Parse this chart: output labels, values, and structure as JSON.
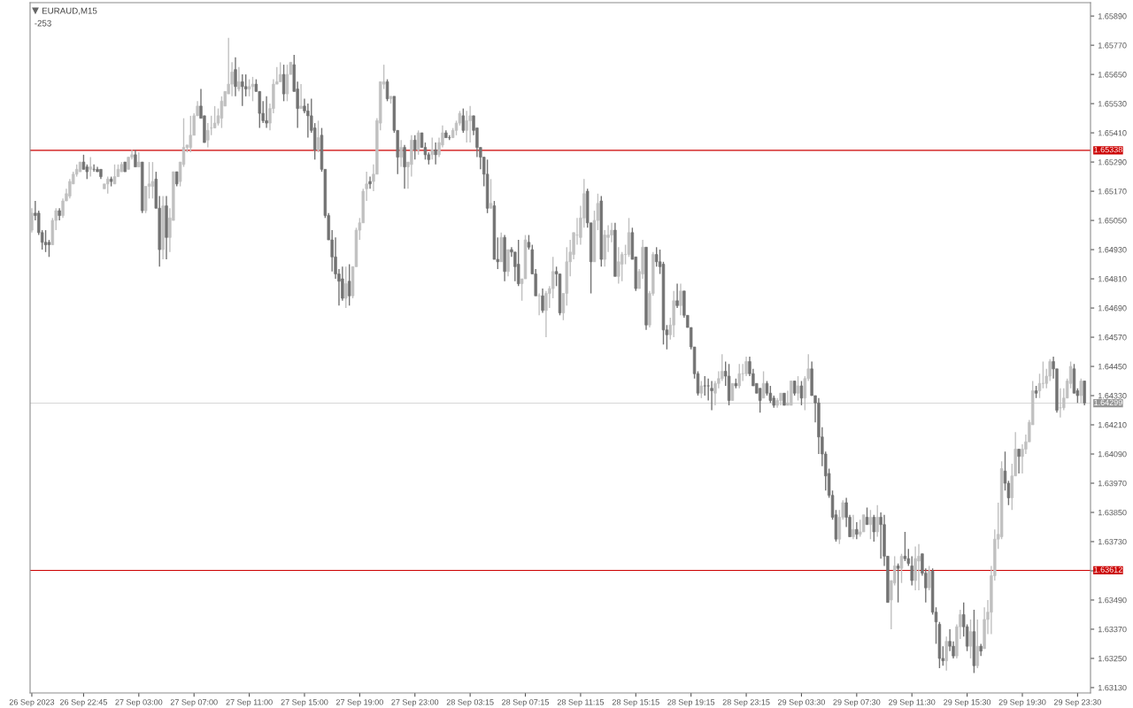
{
  "chart_data": {
    "type": "candlestick",
    "title": "EURAUD,M15",
    "annotations": [
      "-253"
    ],
    "colors": [
      "#c0c0c0",
      "#737373",
      "#737373",
      "#737373",
      "#737373",
      "#737373",
      "#c0c0c0",
      "#c0c0c0",
      "#737373",
      "#c0c0c0",
      "#c0c0c0",
      "#c0c0c0",
      "#c0c0c0",
      "#c0c0c0",
      "#c0c0c0",
      "#737373",
      "#737373",
      "#c0c0c0",
      "#737373",
      "#737373",
      "#737373",
      "#c0c0c0",
      "#c0c0c0",
      "#737373",
      "#c0c0c0",
      "#c0c0c0",
      "#c0c0c0",
      "#737373",
      "#c0c0c0",
      "#c0c0c0",
      "#737373",
      "#c0c0c0",
      "#737373",
      "#c0c0c0",
      "#c0c0c0",
      "#c0c0c0",
      "#737373",
      "#737373",
      "#c0c0c0",
      "#737373",
      "#c0c0c0",
      "#c0c0c0",
      "#737373",
      "#c0c0c0",
      "#c0c0c0",
      "#c0c0c0",
      "#c0c0c0",
      "#c0c0c0",
      "#c0c0c0",
      "#737373",
      "#737373",
      "#c0c0c0",
      "#c0c0c0",
      "#c0c0c0",
      "#c0c0c0",
      "#c0c0c0",
      "#c0c0c0",
      "#c0c0c0",
      "#c0c0c0",
      "#737373",
      "#c0c0c0",
      "#737373",
      "#737373",
      "#c0c0c0",
      "#c0c0c0",
      "#737373",
      "#737373",
      "#737373",
      "#737373",
      "#c0c0c0",
      "#c0c0c0",
      "#c0c0c0",
      "#c0c0c0",
      "#737373",
      "#c0c0c0",
      "#c0c0c0",
      "#737373",
      "#737373",
      "#c0c0c0",
      "#737373",
      "#737373",
      "#737373",
      "#737373",
      "#c0c0c0",
      "#737373",
      "#737373",
      "#737373",
      "#737373",
      "#737373",
      "#737373",
      "#737373",
      "#c0c0c0",
      "#737373",
      "#c0c0c0",
      "#c0c0c0",
      "#c0c0c0",
      "#c0c0c0",
      "#c0c0c0",
      "#737373",
      "#c0c0c0",
      "#c0c0c0",
      "#c0c0c0",
      "#c0c0c0",
      "#737373",
      "#c0c0c0",
      "#737373",
      "#737373",
      "#c0c0c0",
      "#737373",
      "#c0c0c0",
      "#c0c0c0",
      "#737373",
      "#c0c0c0",
      "#737373",
      "#737373",
      "#737373",
      "#c0c0c0",
      "#737373",
      "#c0c0c0",
      "#c0c0c0",
      "#737373",
      "#737373",
      "#c0c0c0",
      "#c0c0c0",
      "#c0c0c0",
      "#737373",
      "#c0c0c0",
      "#c0c0c0",
      "#737373",
      "#737373",
      "#737373",
      "#737373",
      "#737373",
      "#c0c0c0",
      "#737373",
      "#737373",
      "#c0c0c0",
      "#737373",
      "#c0c0c0",
      "#737373",
      "#737373",
      "#737373",
      "#c0c0c0",
      "#c0c0c0",
      "#737373",
      "#737373",
      "#737373",
      "#c0c0c0",
      "#737373",
      "#c0c0c0",
      "#c0c0c0",
      "#c0c0c0",
      "#737373",
      "#737373",
      "#c0c0c0",
      "#c0c0c0",
      "#c0c0c0",
      "#c0c0c0",
      "#c0c0c0",
      "#c0c0c0",
      "#c0c0c0",
      "#737373",
      "#737373",
      "#c0c0c0",
      "#c0c0c0",
      "#737373",
      "#c0c0c0",
      "#c0c0c0",
      "#c0c0c0",
      "#737373",
      "#c0c0c0",
      "#c0c0c0",
      "#c0c0c0",
      "#c0c0c0",
      "#737373",
      "#737373",
      "#c0c0c0",
      "#c0c0c0",
      "#737373",
      "#c0c0c0",
      "#c0c0c0",
      "#737373",
      "#737373",
      "#737373",
      "#737373",
      "#c0c0c0",
      "#c0c0c0",
      "#737373",
      "#c0c0c0",
      "#737373",
      "#737373",
      "#737373",
      "#737373",
      "#737373",
      "#c0c0c0",
      "#737373",
      "#737373",
      "#737373",
      "#c0c0c0",
      "#c0c0c0",
      "#c0c0c0",
      "#737373",
      "#737373",
      "#c0c0c0",
      "#737373",
      "#c0c0c0",
      "#c0c0c0",
      "#c0c0c0",
      "#737373",
      "#737373",
      "#737373",
      "#737373",
      "#c0c0c0",
      "#737373",
      "#737373",
      "#737373",
      "#c0c0c0",
      "#c0c0c0",
      "#737373",
      "#c0c0c0",
      "#c0c0c0",
      "#737373",
      "#c0c0c0",
      "#737373",
      "#c0c0c0",
      "#c0c0c0",
      "#737373",
      "#737373",
      "#737373",
      "#737373",
      "#737373",
      "#737373",
      "#737373",
      "#737373",
      "#c0c0c0",
      "#c0c0c0",
      "#737373",
      "#737373",
      "#c0c0c0",
      "#737373",
      "#c0c0c0",
      "#c0c0c0",
      "#737373",
      "#c0c0c0",
      "#737373",
      "#c0c0c0",
      "#737373",
      "#737373",
      "#737373",
      "#c0c0c0",
      "#c0c0c0",
      "#737373",
      "#c0c0c0",
      "#737373",
      "#737373",
      "#737373",
      "#c0c0c0",
      "#c0c0c0",
      "#737373",
      "#737373",
      "#c0c0c0",
      "#737373",
      "#737373",
      "#737373",
      "#737373",
      "#c0c0c0",
      "#737373",
      "#737373",
      "#c0c0c0",
      "#c0c0c0",
      "#737373",
      "#737373",
      "#c0c0c0",
      "#737373",
      "#c0c0c0",
      "#737373",
      "#c0c0c0",
      "#c0c0c0",
      "#c0c0c0",
      "#c0c0c0",
      "#c0c0c0",
      "#c0c0c0",
      "#737373",
      "#737373",
      "#c0c0c0",
      "#c0c0c0",
      "#737373",
      "#c0c0c0",
      "#c0c0c0",
      "#c0c0c0",
      "#c0c0c0",
      "#737373",
      "#c0c0c0",
      "#c0c0c0",
      "#c0c0c0",
      "#c0c0c0",
      "#737373",
      "#737373",
      "#c0c0c0",
      "#c0c0c0",
      "#c0c0c0",
      "#c0c0c0",
      "#737373",
      "#737373",
      "#c0c0c0",
      "#737373"
    ],
    "categories": [
      "26 Sep 2023",
      null,
      null,
      null,
      null,
      null,
      null,
      null,
      null,
      null,
      null,
      null,
      null,
      null,
      null,
      "26 Sep 22:45",
      null,
      null,
      null,
      null,
      null,
      null,
      null,
      null,
      null,
      null,
      null,
      null,
      null,
      null,
      null,
      "27 Sep 03:00",
      null,
      null,
      null,
      null,
      null,
      null,
      null,
      null,
      null,
      null,
      null,
      null,
      null,
      null,
      null,
      "27 Sep 07:00",
      null,
      null,
      null,
      null,
      null,
      null,
      null,
      null,
      null,
      null,
      null,
      null,
      null,
      null,
      null,
      "27 Sep 11:00",
      null,
      null,
      null,
      null,
      null,
      null,
      null,
      null,
      null,
      null,
      null,
      null,
      null,
      null,
      null,
      "27 Sep 15:00",
      null,
      null,
      null,
      null,
      null,
      null,
      null,
      null,
      null,
      null,
      null,
      null,
      null,
      null,
      null,
      "27 Sep 19:00",
      null,
      null,
      null,
      null,
      null,
      null,
      null,
      null,
      null,
      null,
      null,
      null,
      null,
      null,
      null,
      "27 Sep 23:00",
      null,
      null,
      null,
      null,
      null,
      null,
      null,
      null,
      null,
      null,
      null,
      null,
      null,
      null,
      null,
      "28 Sep 03:15",
      null,
      null,
      null,
      null,
      null,
      null,
      null,
      null,
      null,
      null,
      null,
      null,
      null,
      null,
      null,
      "28 Sep 07:15",
      null,
      null,
      null,
      null,
      null,
      null,
      null,
      null,
      null,
      null,
      null,
      null,
      null,
      null,
      null,
      "28 Sep 11:15",
      null,
      null,
      null,
      null,
      null,
      null,
      null,
      null,
      null,
      null,
      null,
      null,
      null,
      null,
      null,
      "28 Sep 15:15",
      null,
      null,
      null,
      null,
      null,
      null,
      null,
      null,
      null,
      null,
      null,
      null,
      null,
      null,
      null,
      "28 Sep 19:15",
      null,
      null,
      null,
      null,
      null,
      null,
      null,
      null,
      null,
      null,
      null,
      null,
      null,
      null,
      null,
      "28 Sep 23:15",
      null,
      null,
      null,
      null,
      null,
      null,
      null,
      null,
      null,
      null,
      null,
      null,
      null,
      null,
      null,
      "29 Sep 03:30",
      null,
      null,
      null,
      null,
      null,
      null,
      null,
      null,
      null,
      null,
      null,
      null,
      null,
      null,
      null,
      "29 Sep 07:30",
      null,
      null,
      null,
      null,
      null,
      null,
      null,
      null,
      null,
      null,
      null,
      null,
      null,
      null,
      null,
      "29 Sep 11:30",
      null,
      null,
      null,
      null,
      null,
      null,
      null,
      null,
      null,
      null,
      null,
      null,
      null,
      null,
      null,
      "29 Sep 15:30",
      null,
      null,
      null,
      null,
      null,
      null,
      null,
      null,
      null,
      null,
      null,
      null,
      null,
      null,
      null,
      "29 Sep 19:30",
      null,
      null,
      null,
      null,
      null,
      null,
      null,
      null,
      null,
      null,
      null,
      null,
      null,
      null,
      null,
      "29 Sep 23:30",
      null,
      null
    ],
    "ohlc": [
      [
        1.6501,
        1.651,
        1.65,
        1.6508
      ],
      [
        1.6508,
        1.6513,
        1.6505,
        1.6507
      ],
      [
        1.6508,
        1.6509,
        1.6499,
        1.65
      ],
      [
        1.65,
        1.6501,
        1.6493,
        1.6496
      ],
      [
        1.6496,
        1.6501,
        1.6492,
        1.6495
      ],
      [
        1.6496,
        1.6497,
        1.649,
        1.6495
      ],
      [
        1.6495,
        1.6506,
        1.6495,
        1.6505
      ],
      [
        1.6505,
        1.651,
        1.6501,
        1.6509
      ],
      [
        1.6509,
        1.651,
        1.6505,
        1.6507
      ],
      [
        1.6507,
        1.6514,
        1.6506,
        1.6513
      ],
      [
        1.6513,
        1.6518,
        1.6513,
        1.6516
      ],
      [
        1.6515,
        1.6522,
        1.6514,
        1.6521
      ],
      [
        1.652,
        1.6525,
        1.652,
        1.6524
      ],
      [
        1.6524,
        1.6528,
        1.6523,
        1.6526
      ],
      [
        1.6525,
        1.6529,
        1.6525,
        1.6529
      ],
      [
        1.6529,
        1.6532,
        1.6526,
        1.6526
      ],
      [
        1.6527,
        1.6528,
        1.6522,
        1.6525
      ],
      [
        1.6526,
        1.6531,
        1.6523,
        1.6527
      ],
      [
        1.6526,
        1.6528,
        1.6525,
        1.6526
      ],
      [
        1.6526,
        1.6527,
        1.6525,
        1.6525
      ],
      [
        1.6526,
        1.6526,
        1.6522,
        1.6523
      ],
      [
        1.6518,
        1.652,
        1.6518,
        1.652
      ],
      [
        1.652,
        1.6523,
        1.6516,
        1.6522
      ],
      [
        1.6522,
        1.6523,
        1.6519,
        1.6521
      ],
      [
        1.652,
        1.6528,
        1.652,
        1.6523
      ],
      [
        1.6523,
        1.6528,
        1.6523,
        1.6526
      ],
      [
        1.6525,
        1.6529,
        1.6525,
        1.6528
      ],
      [
        1.6529,
        1.6529,
        1.6525,
        1.6525
      ],
      [
        1.6526,
        1.6531,
        1.6526,
        1.6531
      ],
      [
        1.6531,
        1.6534,
        1.653,
        1.6532
      ],
      [
        1.6532,
        1.6534,
        1.6527,
        1.6527
      ],
      [
        1.6527,
        1.6533,
        1.6527,
        1.6529
      ],
      [
        1.6529,
        1.6529,
        1.6508,
        1.6509
      ],
      [
        1.6509,
        1.6519,
        1.6508,
        1.6519
      ],
      [
        1.6519,
        1.6529,
        1.6514,
        1.652
      ],
      [
        1.6519,
        1.6529,
        1.6514,
        1.6521
      ],
      [
        1.6522,
        1.6525,
        1.651,
        1.651
      ],
      [
        1.651,
        1.6515,
        1.6486,
        1.6493
      ],
      [
        1.6493,
        1.6515,
        1.6489,
        1.6511
      ],
      [
        1.6511,
        1.6515,
        1.6489,
        1.6498
      ],
      [
        1.6498,
        1.651,
        1.6492,
        1.6506
      ],
      [
        1.6505,
        1.6525,
        1.6505,
        1.6525
      ],
      [
        1.6525,
        1.6525,
        1.6519,
        1.652
      ],
      [
        1.6521,
        1.6529,
        1.6519,
        1.6529
      ],
      [
        1.6528,
        1.6547,
        1.6527,
        1.6535
      ],
      [
        1.6535,
        1.6536,
        1.6533,
        1.6536
      ],
      [
        1.6535,
        1.6548,
        1.6533,
        1.654
      ],
      [
        1.654,
        1.6549,
        1.654,
        1.6548
      ],
      [
        1.6548,
        1.6554,
        1.6548,
        1.6552
      ],
      [
        1.6552,
        1.6559,
        1.6547,
        1.6547
      ],
      [
        1.6548,
        1.6548,
        1.6537,
        1.6537
      ],
      [
        1.6538,
        1.6545,
        1.6535,
        1.6542
      ],
      [
        1.6543,
        1.6548,
        1.654,
        1.6543
      ],
      [
        1.6543,
        1.6552,
        1.6543,
        1.6545
      ],
      [
        1.6545,
        1.6551,
        1.6544,
        1.6548
      ],
      [
        1.6547,
        1.6556,
        1.6543,
        1.6554
      ],
      [
        1.6552,
        1.6558,
        1.6552,
        1.6558
      ],
      [
        1.6557,
        1.658,
        1.6557,
        1.6561
      ],
      [
        1.6561,
        1.657,
        1.6556,
        1.6566
      ],
      [
        1.6567,
        1.6572,
        1.6556,
        1.656
      ],
      [
        1.6559,
        1.6568,
        1.6558,
        1.6562
      ],
      [
        1.6562,
        1.6565,
        1.6552,
        1.656
      ],
      [
        1.656,
        1.6565,
        1.6556,
        1.6559
      ],
      [
        1.6559,
        1.6563,
        1.6556,
        1.656
      ],
      [
        1.656,
        1.6564,
        1.6554,
        1.6561
      ],
      [
        1.6561,
        1.6563,
        1.6558,
        1.6558
      ],
      [
        1.6558,
        1.6558,
        1.6543,
        1.6549
      ],
      [
        1.6549,
        1.6554,
        1.6545,
        1.6546
      ],
      [
        1.6546,
        1.6556,
        1.6543,
        1.6545
      ],
      [
        1.6545,
        1.6553,
        1.6542,
        1.6551
      ],
      [
        1.6551,
        1.6563,
        1.6549,
        1.6561
      ],
      [
        1.6561,
        1.6568,
        1.6561,
        1.6562
      ],
      [
        1.6562,
        1.657,
        1.6562,
        1.6565
      ],
      [
        1.6565,
        1.6569,
        1.6554,
        1.6557
      ],
      [
        1.6557,
        1.6569,
        1.6554,
        1.6565
      ],
      [
        1.6565,
        1.657,
        1.6565,
        1.657
      ],
      [
        1.6569,
        1.6573,
        1.6558,
        1.6558
      ],
      [
        1.6559,
        1.6562,
        1.6543,
        1.6551
      ],
      [
        1.6551,
        1.6561,
        1.6551,
        1.6552
      ],
      [
        1.6552,
        1.6555,
        1.6549,
        1.655
      ],
      [
        1.655,
        1.6553,
        1.6539,
        1.6548
      ],
      [
        1.6548,
        1.6555,
        1.6541,
        1.6542
      ],
      [
        1.6543,
        1.6545,
        1.653,
        1.6534
      ],
      [
        1.6534,
        1.6546,
        1.6533,
        1.6539
      ],
      [
        1.654,
        1.6543,
        1.6525,
        1.6526
      ],
      [
        1.6526,
        1.6526,
        1.6506,
        1.6507
      ],
      [
        1.6507,
        1.6508,
        1.6497,
        1.6497
      ],
      [
        1.6497,
        1.6501,
        1.6484,
        1.649
      ],
      [
        1.649,
        1.6498,
        1.6481,
        1.6483
      ],
      [
        1.6483,
        1.6485,
        1.647,
        1.648
      ],
      [
        1.6481,
        1.6486,
        1.6472,
        1.6473
      ],
      [
        1.6473,
        1.6486,
        1.6469,
        1.6479
      ],
      [
        1.648,
        1.6487,
        1.647,
        1.6474
      ],
      [
        1.6474,
        1.6486,
        1.6473,
        1.6486
      ],
      [
        1.6486,
        1.6502,
        1.6486,
        1.6501
      ],
      [
        1.6501,
        1.6506,
        1.6497,
        1.6504
      ],
      [
        1.6504,
        1.6518,
        1.6504,
        1.6517
      ],
      [
        1.6518,
        1.6525,
        1.6513,
        1.652
      ],
      [
        1.6521,
        1.6523,
        1.6518,
        1.652
      ],
      [
        1.6521,
        1.6528,
        1.6517,
        1.6524
      ],
      [
        1.6524,
        1.6547,
        1.6524,
        1.6546
      ],
      [
        1.6545,
        1.6562,
        1.6542,
        1.6562
      ],
      [
        1.6561,
        1.6569,
        1.6559,
        1.6562
      ],
      [
        1.6562,
        1.6563,
        1.6554,
        1.6555
      ],
      [
        1.6555,
        1.6556,
        1.6553,
        1.6556
      ],
      [
        1.6556,
        1.6556,
        1.6541,
        1.6542
      ],
      [
        1.6542,
        1.6542,
        1.6524,
        1.6531
      ],
      [
        1.6531,
        1.6538,
        1.6527,
        1.6535
      ],
      [
        1.6535,
        1.6536,
        1.6518,
        1.6527
      ],
      [
        1.6527,
        1.6529,
        1.6518,
        1.6529
      ],
      [
        1.6528,
        1.654,
        1.6523,
        1.6538
      ],
      [
        1.6538,
        1.654,
        1.653,
        1.6534
      ],
      [
        1.6534,
        1.6542,
        1.6532,
        1.6541
      ],
      [
        1.6541,
        1.6541,
        1.6535,
        1.6535
      ],
      [
        1.6535,
        1.6537,
        1.653,
        1.6532
      ],
      [
        1.6532,
        1.6533,
        1.6528,
        1.653
      ],
      [
        1.6532,
        1.6539,
        1.653,
        1.6534
      ],
      [
        1.6534,
        1.6537,
        1.6528,
        1.6532
      ],
      [
        1.6532,
        1.6539,
        1.6531,
        1.6537
      ],
      [
        1.6536,
        1.6544,
        1.6535,
        1.6541
      ],
      [
        1.6541,
        1.6542,
        1.6539,
        1.6539
      ],
      [
        1.6539,
        1.654,
        1.6538,
        1.6539
      ],
      [
        1.6539,
        1.6543,
        1.6539,
        1.6542
      ],
      [
        1.6542,
        1.6546,
        1.654,
        1.6545
      ],
      [
        1.6545,
        1.655,
        1.6544,
        1.6549
      ],
      [
        1.6548,
        1.6551,
        1.6541,
        1.6542
      ],
      [
        1.6542,
        1.655,
        1.6537,
        1.6546
      ],
      [
        1.6546,
        1.6552,
        1.6537,
        1.6548
      ],
      [
        1.6548,
        1.6548,
        1.654,
        1.6542
      ],
      [
        1.6543,
        1.6543,
        1.6531,
        1.6535
      ],
      [
        1.6535,
        1.6535,
        1.6526,
        1.6531
      ],
      [
        1.6531,
        1.6531,
        1.6519,
        1.6524
      ],
      [
        1.6524,
        1.653,
        1.6508,
        1.651
      ],
      [
        1.651,
        1.6522,
        1.651,
        1.6512
      ],
      [
        1.6511,
        1.6513,
        1.6489,
        1.6489
      ],
      [
        1.6489,
        1.6498,
        1.6485,
        1.6488
      ],
      [
        1.6488,
        1.65,
        1.6488,
        1.6498
      ],
      [
        1.6498,
        1.6499,
        1.648,
        1.6484
      ],
      [
        1.6484,
        1.6493,
        1.6482,
        1.6493
      ],
      [
        1.6493,
        1.6494,
        1.649,
        1.6492
      ],
      [
        1.6492,
        1.6492,
        1.648,
        1.6486
      ],
      [
        1.6487,
        1.6497,
        1.6478,
        1.6479
      ],
      [
        1.6479,
        1.6481,
        1.6472,
        1.6481
      ],
      [
        1.6481,
        1.6499,
        1.6481,
        1.6497
      ],
      [
        1.6496,
        1.6499,
        1.6493,
        1.6494
      ],
      [
        1.6493,
        1.6495,
        1.6483,
        1.6483
      ],
      [
        1.6483,
        1.6485,
        1.6474,
        1.6474
      ],
      [
        1.6474,
        1.6475,
        1.6466,
        1.6474
      ],
      [
        1.6474,
        1.6477,
        1.6467,
        1.6468
      ],
      [
        1.6468,
        1.6476,
        1.6457,
        1.6475
      ],
      [
        1.6475,
        1.6478,
        1.6469,
        1.6477
      ],
      [
        1.6477,
        1.649,
        1.6473,
        1.6484
      ],
      [
        1.6484,
        1.6486,
        1.6478,
        1.6483
      ],
      [
        1.6483,
        1.6483,
        1.6466,
        1.6467
      ],
      [
        1.6467,
        1.6475,
        1.6464,
        1.6475
      ],
      [
        1.6475,
        1.6494,
        1.647,
        1.6488
      ],
      [
        1.6488,
        1.6497,
        1.6482,
        1.6492
      ],
      [
        1.6491,
        1.65,
        1.6489,
        1.65
      ],
      [
        1.6499,
        1.6506,
        1.6495,
        1.6499
      ],
      [
        1.6498,
        1.6511,
        1.6495,
        1.6506
      ],
      [
        1.6506,
        1.6522,
        1.6502,
        1.6516
      ],
      [
        1.6517,
        1.6518,
        1.6502,
        1.6504
      ],
      [
        1.6504,
        1.6504,
        1.6475,
        1.6488
      ],
      [
        1.6488,
        1.6509,
        1.6488,
        1.6505
      ],
      [
        1.6505,
        1.6516,
        1.6501,
        1.6512
      ],
      [
        1.6513,
        1.6515,
        1.6486,
        1.6489
      ],
      [
        1.6489,
        1.6501,
        1.6486,
        1.6499
      ],
      [
        1.6498,
        1.6503,
        1.6492,
        1.6499
      ],
      [
        1.6499,
        1.6504,
        1.6496,
        1.6501
      ],
      [
        1.6501,
        1.6504,
        1.6482,
        1.6482
      ],
      [
        1.6482,
        1.6494,
        1.6479,
        1.6488
      ],
      [
        1.6487,
        1.6492,
        1.648,
        1.6491
      ],
      [
        1.6491,
        1.6495,
        1.6487,
        1.6491
      ],
      [
        1.6491,
        1.6506,
        1.649,
        1.65
      ],
      [
        1.65,
        1.6502,
        1.6489,
        1.6489
      ],
      [
        1.649,
        1.649,
        1.6476,
        1.6477
      ],
      [
        1.6477,
        1.6485,
        1.6477,
        1.6484
      ],
      [
        1.6483,
        1.6497,
        1.6481,
        1.6494
      ],
      [
        1.6494,
        1.6494,
        1.646,
        1.6462
      ],
      [
        1.6462,
        1.6476,
        1.6461,
        1.6475
      ],
      [
        1.6475,
        1.6492,
        1.6474,
        1.6491
      ],
      [
        1.6491,
        1.6494,
        1.6486,
        1.6488
      ],
      [
        1.6488,
        1.6493,
        1.6483,
        1.6486
      ],
      [
        1.6487,
        1.6488,
        1.6454,
        1.646
      ],
      [
        1.646,
        1.6462,
        1.6452,
        1.6458
      ],
      [
        1.6458,
        1.6465,
        1.6456,
        1.6462
      ],
      [
        1.6462,
        1.6476,
        1.6457,
        1.6472
      ],
      [
        1.6472,
        1.6479,
        1.6469,
        1.647
      ],
      [
        1.647,
        1.6479,
        1.6466,
        1.6476
      ],
      [
        1.6476,
        1.6476,
        1.6465,
        1.6466
      ],
      [
        1.6466,
        1.6466,
        1.6461,
        1.6461
      ],
      [
        1.6461,
        1.6461,
        1.6452,
        1.6453
      ],
      [
        1.6453,
        1.6453,
        1.644,
        1.6442
      ],
      [
        1.6442,
        1.6443,
        1.6433,
        1.6434
      ],
      [
        1.6434,
        1.6439,
        1.6432,
        1.6437
      ],
      [
        1.6437,
        1.6441,
        1.6433,
        1.6437
      ],
      [
        1.6437,
        1.644,
        1.6431,
        1.6437
      ],
      [
        1.6436,
        1.6439,
        1.6427,
        1.6435
      ],
      [
        1.6434,
        1.6439,
        1.6429,
        1.6438
      ],
      [
        1.6438,
        1.6443,
        1.6436,
        1.644
      ],
      [
        1.644,
        1.645,
        1.6439,
        1.6443
      ],
      [
        1.6443,
        1.6447,
        1.6437,
        1.6441
      ],
      [
        1.6441,
        1.6446,
        1.6429,
        1.6431
      ],
      [
        1.6431,
        1.6438,
        1.6431,
        1.6438
      ],
      [
        1.6438,
        1.644,
        1.6436,
        1.6437
      ],
      [
        1.6437,
        1.6446,
        1.6436,
        1.6442
      ],
      [
        1.6442,
        1.6446,
        1.6439,
        1.6442
      ],
      [
        1.6442,
        1.6449,
        1.6441,
        1.6447
      ],
      [
        1.6447,
        1.6449,
        1.6441,
        1.6442
      ],
      [
        1.6442,
        1.6444,
        1.6437,
        1.6437
      ],
      [
        1.6438,
        1.6438,
        1.6434,
        1.6434
      ],
      [
        1.6436,
        1.6436,
        1.6426,
        1.6431
      ],
      [
        1.6432,
        1.6443,
        1.6432,
        1.6438
      ],
      [
        1.6438,
        1.6439,
        1.6433,
        1.6434
      ],
      [
        1.6434,
        1.6437,
        1.643,
        1.6431
      ],
      [
        1.6432,
        1.6433,
        1.6428,
        1.6429
      ],
      [
        1.6429,
        1.6432,
        1.6428,
        1.6431
      ],
      [
        1.6431,
        1.6434,
        1.6429,
        1.6434
      ],
      [
        1.6434,
        1.6434,
        1.6429,
        1.6429
      ],
      [
        1.6429,
        1.6435,
        1.6429,
        1.643
      ],
      [
        1.6429,
        1.6439,
        1.6429,
        1.6439
      ],
      [
        1.6439,
        1.6439,
        1.6433,
        1.6434
      ],
      [
        1.6434,
        1.6441,
        1.6431,
        1.6437
      ],
      [
        1.6437,
        1.6439,
        1.6429,
        1.6432
      ],
      [
        1.6432,
        1.6441,
        1.6427,
        1.644
      ],
      [
        1.644,
        1.645,
        1.6439,
        1.6444
      ],
      [
        1.6444,
        1.6447,
        1.6433,
        1.6433
      ],
      [
        1.6433,
        1.6433,
        1.6422,
        1.643
      ],
      [
        1.643,
        1.6432,
        1.6409,
        1.6416
      ],
      [
        1.6416,
        1.642,
        1.6404,
        1.6409
      ],
      [
        1.6409,
        1.641,
        1.6394,
        1.64
      ],
      [
        1.6401,
        1.6403,
        1.6391,
        1.6392
      ],
      [
        1.6392,
        1.6394,
        1.6382,
        1.6383
      ],
      [
        1.6384,
        1.6386,
        1.6373,
        1.6374
      ],
      [
        1.6374,
        1.6386,
        1.6372,
        1.6383
      ],
      [
        1.6383,
        1.639,
        1.6382,
        1.6389
      ],
      [
        1.6389,
        1.6391,
        1.6379,
        1.6383
      ],
      [
        1.6383,
        1.6384,
        1.6375,
        1.6375
      ],
      [
        1.6375,
        1.6384,
        1.6374,
        1.6378
      ],
      [
        1.6378,
        1.6381,
        1.6374,
        1.6376
      ],
      [
        1.6376,
        1.6382,
        1.6375,
        1.6377
      ],
      [
        1.6377,
        1.6384,
        1.6377,
        1.6384
      ],
      [
        1.6383,
        1.6387,
        1.638,
        1.638
      ],
      [
        1.638,
        1.6386,
        1.6374,
        1.6383
      ],
      [
        1.6383,
        1.6384,
        1.6373,
        1.6377
      ],
      [
        1.6377,
        1.6388,
        1.6375,
        1.6383
      ],
      [
        1.6383,
        1.6385,
        1.6366,
        1.638
      ],
      [
        1.638,
        1.6384,
        1.6363,
        1.6367
      ],
      [
        1.6367,
        1.6367,
        1.6348,
        1.6348
      ],
      [
        1.6349,
        1.6357,
        1.6337,
        1.6357
      ],
      [
        1.6356,
        1.6367,
        1.6355,
        1.6363
      ],
      [
        1.6363,
        1.6364,
        1.6348,
        1.6362
      ],
      [
        1.6362,
        1.6368,
        1.6356,
        1.6367
      ],
      [
        1.6367,
        1.6377,
        1.6365,
        1.6366
      ],
      [
        1.6366,
        1.637,
        1.6363,
        1.6364
      ],
      [
        1.6363,
        1.6367,
        1.6355,
        1.6357
      ],
      [
        1.6357,
        1.6371,
        1.6353,
        1.6366
      ],
      [
        1.6365,
        1.6372,
        1.6353,
        1.6367
      ],
      [
        1.6368,
        1.6368,
        1.6359,
        1.636
      ],
      [
        1.636,
        1.6362,
        1.6348,
        1.6354
      ],
      [
        1.6354,
        1.6363,
        1.6353,
        1.6361
      ],
      [
        1.6361,
        1.6362,
        1.6343,
        1.6344
      ],
      [
        1.6344,
        1.6346,
        1.6331,
        1.634
      ],
      [
        1.6339,
        1.634,
        1.6321,
        1.6325
      ],
      [
        1.6325,
        1.633,
        1.6322,
        1.6324
      ],
      [
        1.6324,
        1.6334,
        1.632,
        1.6332
      ],
      [
        1.6332,
        1.6337,
        1.6328,
        1.633
      ],
      [
        1.633,
        1.6332,
        1.6325,
        1.6326
      ],
      [
        1.6326,
        1.6339,
        1.6325,
        1.6338
      ],
      [
        1.6338,
        1.6345,
        1.6333,
        1.6343
      ],
      [
        1.6343,
        1.6348,
        1.6334,
        1.6338
      ],
      [
        1.6338,
        1.6339,
        1.6328,
        1.633
      ],
      [
        1.633,
        1.6341,
        1.6325,
        1.6336
      ],
      [
        1.6336,
        1.6345,
        1.6319,
        1.6322
      ],
      [
        1.6322,
        1.6341,
        1.6321,
        1.633
      ],
      [
        1.633,
        1.6331,
        1.6326,
        1.6328
      ],
      [
        1.6329,
        1.6346,
        1.6329,
        1.6341
      ],
      [
        1.6341,
        1.6349,
        1.6335,
        1.6344
      ],
      [
        1.6344,
        1.6363,
        1.6335,
        1.6359
      ],
      [
        1.6359,
        1.6378,
        1.6357,
        1.6374
      ],
      [
        1.6374,
        1.6389,
        1.637,
        1.6376
      ],
      [
        1.6375,
        1.6406,
        1.6374,
        1.6403
      ],
      [
        1.6402,
        1.641,
        1.6394,
        1.6397
      ],
      [
        1.6397,
        1.6398,
        1.6388,
        1.6391
      ],
      [
        1.6391,
        1.6405,
        1.6386,
        1.64
      ],
      [
        1.64,
        1.6418,
        1.64,
        1.6411
      ],
      [
        1.6411,
        1.6411,
        1.6401,
        1.6408
      ],
      [
        1.6408,
        1.6413,
        1.6401,
        1.6411
      ],
      [
        1.6411,
        1.6417,
        1.6409,
        1.6414
      ],
      [
        1.6414,
        1.6423,
        1.6414,
        1.6422
      ],
      [
        1.6421,
        1.6439,
        1.6421,
        1.6435
      ],
      [
        1.6435,
        1.6437,
        1.6432,
        1.6434
      ],
      [
        1.6435,
        1.6442,
        1.6432,
        1.6438
      ],
      [
        1.6438,
        1.6447,
        1.6436,
        1.6438
      ],
      [
        1.6438,
        1.6444,
        1.6436,
        1.6441
      ],
      [
        1.6441,
        1.6448,
        1.6439,
        1.6447
      ],
      [
        1.6447,
        1.6449,
        1.644,
        1.6444
      ],
      [
        1.6444,
        1.6444,
        1.6426,
        1.6427
      ],
      [
        1.6428,
        1.6436,
        1.6424,
        1.6428
      ],
      [
        1.6428,
        1.6436,
        1.6427,
        1.6432
      ],
      [
        1.6432,
        1.644,
        1.6432,
        1.6439
      ],
      [
        1.6438,
        1.6447,
        1.6436,
        1.6445
      ],
      [
        1.6444,
        1.6446,
        1.6434,
        1.6434
      ],
      [
        1.6435,
        1.6436,
        1.643,
        1.6433
      ],
      [
        1.6433,
        1.644,
        1.643,
        1.6439
      ],
      [
        1.6439,
        1.6439,
        1.6429,
        1.643
      ]
    ],
    "ylim": [
      1.63108,
      1.65945
    ],
    "yticks": [
      {
        "value": 1.6589,
        "label": "1.65890"
      },
      {
        "value": 1.6577,
        "label": "1.65770"
      },
      {
        "value": 1.6565,
        "label": "1.65650"
      },
      {
        "value": 1.6553,
        "label": "1.65530"
      },
      {
        "value": 1.6541,
        "label": "1.65410"
      },
      {
        "value": 1.6529,
        "label": "1.65290"
      },
      {
        "value": 1.6517,
        "label": "1.65170"
      },
      {
        "value": 1.6505,
        "label": "1.65050"
      },
      {
        "value": 1.6493,
        "label": "1.64930"
      },
      {
        "value": 1.6481,
        "label": "1.64810"
      },
      {
        "value": 1.6469,
        "label": "1.64690"
      },
      {
        "value": 1.6457,
        "label": "1.64570"
      },
      {
        "value": 1.6445,
        "label": "1.64450"
      },
      {
        "value": 1.6433,
        "label": "1.64330"
      },
      {
        "value": 1.6421,
        "label": "1.64210"
      },
      {
        "value": 1.6409,
        "label": "1.64090"
      },
      {
        "value": 1.6397,
        "label": "1.63970"
      },
      {
        "value": 1.6385,
        "label": "1.63850"
      },
      {
        "value": 1.6373,
        "label": "1.63730"
      },
      {
        "value": 1.6361,
        "label": null
      },
      {
        "value": 1.6349,
        "label": "1.63490"
      },
      {
        "value": 1.6337,
        "label": "1.63370"
      },
      {
        "value": 1.6325,
        "label": "1.63250"
      },
      {
        "value": 1.6313,
        "label": "1.63130"
      }
    ],
    "ref_lines": [
      {
        "axis": "y",
        "value": 1.65338,
        "label": "1.65338",
        "color": "#cc0000"
      },
      {
        "axis": "y",
        "value": 1.64299,
        "label": "1.64299",
        "color": "#d6d6d6"
      },
      {
        "axis": "y",
        "value": 1.63612,
        "label": "1.63612",
        "color": "#cc0000"
      }
    ],
    "grid": false
  }
}
